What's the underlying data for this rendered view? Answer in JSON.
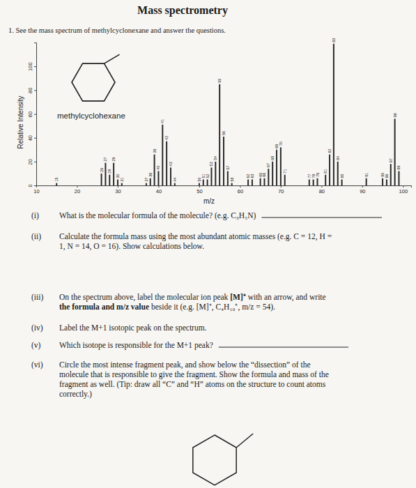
{
  "title": "Mass spectrometry",
  "intro": "1. See the mass spectrum of methylcyclonexane and answer the questions.",
  "chart_data": {
    "type": "bar",
    "annotations": [
      "methylcyclohexane"
    ],
    "x_label": "m/z",
    "y_label": "Relative Intensity",
    "x": [
      15,
      26,
      27,
      28,
      29,
      30,
      31,
      37,
      38,
      39,
      40,
      41,
      42,
      43,
      44,
      50,
      51,
      52,
      53,
      54,
      55,
      56,
      57,
      58,
      62,
      63,
      65,
      66,
      67,
      68,
      69,
      70,
      71,
      77,
      78,
      79,
      81,
      82,
      83,
      84,
      85,
      91,
      95,
      96,
      97,
      98,
      99
    ],
    "values": [
      2,
      10,
      19,
      9,
      19,
      5,
      2,
      2,
      6,
      26,
      12,
      51,
      37,
      15,
      2,
      2,
      5,
      5,
      15,
      20,
      85,
      41,
      12,
      2,
      5,
      5,
      6,
      6,
      14,
      20,
      30,
      32,
      9,
      5,
      5,
      6,
      9,
      26,
      119,
      20,
      5,
      6,
      6,
      5,
      18,
      56,
      12
    ],
    "xlim": [
      10,
      102
    ],
    "ylim": [
      0,
      120
    ],
    "xticks": [
      10,
      20,
      30,
      40,
      50,
      60,
      70,
      80,
      90,
      100
    ],
    "yticks": [
      0,
      20,
      40,
      60,
      80,
      100
    ],
    "color": "#2a2a2a",
    "data_labels": true
  },
  "questions": [
    {
      "number": "(i)",
      "blank": true,
      "lines": [
        [
          {
            "text": "What is the molecular formula of the molecule? (e.g. C₃H₅N)"
          }
        ]
      ]
    },
    {
      "number": "(ii)",
      "lines": [
        [
          {
            "text": "Calculate the formula mass using the most abundant atomic masses (e.g. C = 12, H ="
          }
        ],
        [
          {
            "text": "1, N = 14, O = 16). Show calculations below."
          }
        ]
      ]
    },
    {
      "number": "(iii)",
      "lines": [
        [
          {
            "text": "On the spectrum above, label the molecular ion peak "
          },
          {
            "text": "[M]⁺",
            "bold": true
          },
          {
            "text": " with an arrow, and write"
          }
        ],
        [
          {
            "text": "the formula and m/z value",
            "bold": true
          },
          {
            "text": " beside it (e.g. [M]⁺, C₄H₁₀⁺, m/z = 54)."
          }
        ]
      ]
    },
    {
      "number": "(iv)",
      "lines": [
        [
          {
            "text": "Label the M+1 isotopic peak on the spectrum."
          }
        ]
      ]
    },
    {
      "number": "(v)",
      "blank": true,
      "lines": [
        [
          {
            "text": "Which isotope is responsible for the M+1 peak?"
          }
        ]
      ]
    },
    {
      "number": "(vi)",
      "lines": [
        [
          {
            "text": "Circle the most intense fragment peak, and show below the “dissection” of the"
          }
        ],
        [
          {
            "text": "molecule that is responsible to give the fragment. Show the formula and mass of the"
          }
        ],
        [
          {
            "text": "fragment as well. (Tip: draw all “C” and “H” atoms on the structure to count atoms"
          }
        ],
        [
          {
            "text": "correctly.)"
          }
        ]
      ]
    }
  ]
}
